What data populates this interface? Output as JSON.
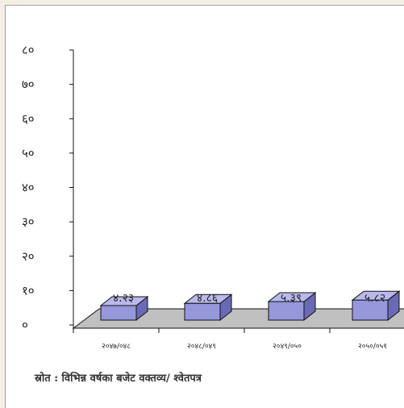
{
  "chart_data": {
    "type": "bar",
    "categories": [
      "२०४७/०४८",
      "२०४८/०४९",
      "२०४९/०५०",
      "२०५०/०५१"
    ],
    "values": [
      4.23,
      4.86,
      5.39,
      5.82
    ],
    "data_labels": [
      "४.२३",
      "४.८६",
      "५.३९",
      "५.८२"
    ],
    "y_ticks": [
      0,
      10,
      20,
      30,
      40,
      50,
      60,
      70,
      80
    ],
    "y_tick_labels": [
      "०",
      "१०",
      "२०",
      "३०",
      "४०",
      "५०",
      "६०",
      "७०",
      "८०"
    ],
    "ylim": [
      0,
      80
    ],
    "grid": false,
    "bar_colors": {
      "front": "#9797dc",
      "top": "#b9b9ec",
      "side": "#6a6ab4"
    },
    "floor_color": "#c0c0c0"
  },
  "source_note": "स्रोत : विभिन्न वर्षका बजेट वक्तव्य/ श्वेतपत्र"
}
